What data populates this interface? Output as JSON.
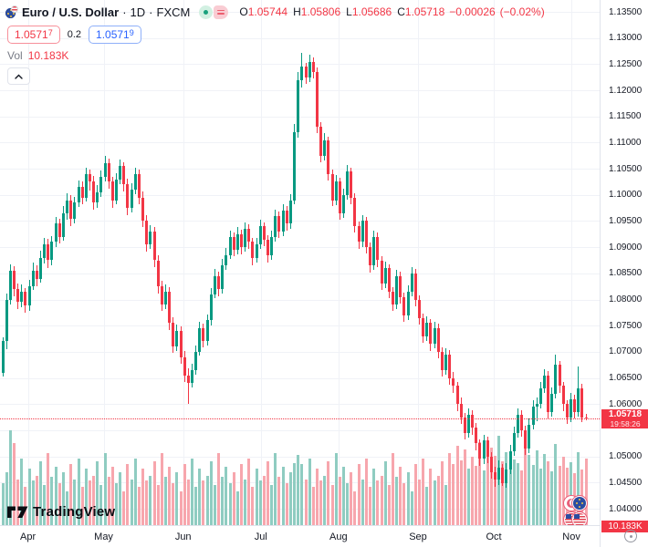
{
  "header": {
    "symbol_title": "Euro / U.S. Dollar",
    "separator": "·",
    "interval": "1D",
    "exchange": "FXCM",
    "ohlc": {
      "o_label": "O",
      "o": "1.05744",
      "h_label": "H",
      "h": "1.05806",
      "l_label": "L",
      "l": "1.05686",
      "c_label": "C",
      "c": "1.05718",
      "change": "−0.00026",
      "change_pct": "(−0.02%)"
    },
    "bid": {
      "main": "1.0571",
      "sup": "7"
    },
    "spread": "0.2",
    "ask": {
      "main": "1.0571",
      "sup": "9"
    },
    "vol_label": "Vol",
    "vol_value": "10.183K"
  },
  "last_price_label": {
    "price": "1.05718",
    "countdown": "19:58:26"
  },
  "volume_badge": "10.183K",
  "logo": {
    "text": "TradingView"
  },
  "colors": {
    "up": "#089981",
    "down": "#f23645",
    "vol_up": "#8fccc1",
    "vol_down": "#f7a6ad",
    "accent_blue": "#2962ff",
    "accent_red": "#f23645",
    "grid": "#f0f2f7",
    "axis_text": "#131722",
    "muted_text": "#787b86"
  },
  "price_axis_labels": [
    "1.13500",
    "1.13000",
    "1.12500",
    "1.12000",
    "1.11500",
    "1.11000",
    "1.10500",
    "1.10000",
    "1.09500",
    "1.09000",
    "1.08500",
    "1.08000",
    "1.07500",
    "1.07000",
    "1.06500",
    "1.06000",
    "1.05000",
    "1.04500",
    "1.04000"
  ],
  "chart_data": {
    "type": "candlestick",
    "title": "Euro / U.S. Dollar · 1D · FXCM",
    "symbol": "EUR/USD",
    "interval": "1D",
    "exchange": "FXCM",
    "last": {
      "open": 1.05744,
      "high": 1.05806,
      "low": 1.05686,
      "close": 1.05718,
      "change": -0.00026,
      "change_pct": -0.02,
      "volume_k": 10.183
    },
    "price_axis": {
      "min": 1.04,
      "max": 1.135,
      "step": 0.005
    },
    "x_axis_months": [
      {
        "label": "Apr",
        "index": 7
      },
      {
        "label": "May",
        "index": 27
      },
      {
        "label": "Jun",
        "index": 48
      },
      {
        "label": "Jul",
        "index": 68.5
      },
      {
        "label": "Aug",
        "index": 89
      },
      {
        "label": "Sep",
        "index": 110
      },
      {
        "label": "Oct",
        "index": 130
      },
      {
        "label": "Nov",
        "index": 150.5
      }
    ],
    "series_format": [
      "open",
      "high",
      "low",
      "close",
      "volume_k"
    ],
    "candles": [
      [
        1.066,
        1.0728,
        1.0652,
        1.072,
        6.4
      ],
      [
        1.072,
        1.0812,
        1.0705,
        1.08,
        8.1
      ],
      [
        1.08,
        1.0868,
        1.079,
        1.0855,
        14.5
      ],
      [
        1.0855,
        1.0864,
        1.0806,
        1.082,
        12.5
      ],
      [
        1.082,
        1.0831,
        1.0782,
        1.0795,
        7.0
      ],
      [
        1.0795,
        1.0828,
        1.0786,
        1.0815,
        10.2
      ],
      [
        1.0815,
        1.0822,
        1.0775,
        1.0788,
        5.8
      ],
      [
        1.0788,
        1.0838,
        1.0779,
        1.0825,
        8.6
      ],
      [
        1.0825,
        1.087,
        1.0818,
        1.0855,
        6.9
      ],
      [
        1.0855,
        1.0866,
        1.0826,
        1.084,
        7.6
      ],
      [
        1.084,
        1.0893,
        1.0832,
        1.088,
        9.8
      ],
      [
        1.088,
        1.0918,
        1.0869,
        1.0905,
        6.2
      ],
      [
        1.0905,
        1.0916,
        1.0861,
        1.0875,
        11.0
      ],
      [
        1.0875,
        1.0922,
        1.0865,
        1.091,
        7.4
      ],
      [
        1.091,
        1.0958,
        1.09,
        1.0945,
        8.9
      ],
      [
        1.0945,
        1.0955,
        1.0908,
        1.092,
        6.4
      ],
      [
        1.092,
        1.0978,
        1.0912,
        1.0965,
        8.1
      ],
      [
        1.0965,
        1.1003,
        1.0952,
        1.099,
        5.2
      ],
      [
        1.099,
        1.0999,
        1.0941,
        1.0955,
        9.3
      ],
      [
        1.0955,
        1.0996,
        1.0946,
        1.0985,
        7.0
      ],
      [
        1.0985,
        1.1028,
        1.0977,
        1.1015,
        10.2
      ],
      [
        1.1015,
        1.1026,
        1.0982,
        1.0995,
        5.8
      ],
      [
        1.0995,
        1.1052,
        1.0988,
        1.104,
        8.6
      ],
      [
        1.104,
        1.1049,
        1.1008,
        1.1025,
        6.9
      ],
      [
        1.1025,
        1.1036,
        1.0972,
        1.0985,
        7.6
      ],
      [
        1.0985,
        1.1018,
        1.0976,
        1.1005,
        9.8
      ],
      [
        1.1005,
        1.1046,
        1.0997,
        1.1035,
        6.2
      ],
      [
        1.1035,
        1.1075,
        1.1026,
        1.106,
        11.0
      ],
      [
        1.106,
        1.1069,
        1.1012,
        1.1025,
        7.4
      ],
      [
        1.1025,
        1.1034,
        1.0976,
        1.099,
        8.9
      ],
      [
        1.099,
        1.1042,
        1.0982,
        1.103,
        6.4
      ],
      [
        1.103,
        1.1068,
        1.1021,
        1.1055,
        8.1
      ],
      [
        1.1055,
        1.1063,
        1.1006,
        1.102,
        5.2
      ],
      [
        1.102,
        1.1031,
        1.0962,
        1.0975,
        9.3
      ],
      [
        1.0975,
        1.1022,
        1.0966,
        1.101,
        7.0
      ],
      [
        1.101,
        1.1052,
        1.1001,
        1.104,
        10.2
      ],
      [
        1.104,
        1.1048,
        1.0982,
        1.0995,
        5.8
      ],
      [
        1.0995,
        1.1006,
        1.0938,
        1.095,
        8.6
      ],
      [
        1.095,
        1.0961,
        1.0892,
        1.0905,
        6.9
      ],
      [
        1.0905,
        1.0942,
        1.0896,
        1.093,
        7.6
      ],
      [
        1.093,
        1.0938,
        1.0862,
        1.0875,
        9.8
      ],
      [
        1.0875,
        1.0884,
        1.0812,
        1.0825,
        6.2
      ],
      [
        1.0825,
        1.0836,
        1.0778,
        1.079,
        11.0
      ],
      [
        1.079,
        1.0828,
        1.0781,
        1.0815,
        7.4
      ],
      [
        1.0815,
        1.0823,
        1.0742,
        1.0755,
        8.9
      ],
      [
        1.0755,
        1.0766,
        1.0698,
        1.071,
        6.4
      ],
      [
        1.071,
        1.0752,
        1.0701,
        1.074,
        8.1
      ],
      [
        1.074,
        1.0749,
        1.0678,
        1.069,
        5.2
      ],
      [
        1.069,
        1.0701,
        1.0642,
        1.0655,
        9.3
      ],
      [
        1.0655,
        1.0668,
        1.0601,
        1.064,
        7.0
      ],
      [
        1.064,
        1.0678,
        1.0632,
        1.0665,
        10.2
      ],
      [
        1.0665,
        1.0712,
        1.0656,
        1.07,
        5.8
      ],
      [
        1.07,
        1.0758,
        1.0692,
        1.0745,
        8.6
      ],
      [
        1.0745,
        1.0754,
        1.0708,
        1.072,
        6.9
      ],
      [
        1.072,
        1.0772,
        1.0712,
        1.076,
        7.6
      ],
      [
        1.076,
        1.0822,
        1.0751,
        1.081,
        9.8
      ],
      [
        1.081,
        1.0858,
        1.0802,
        1.0845,
        6.2
      ],
      [
        1.0845,
        1.0853,
        1.0806,
        1.082,
        11.0
      ],
      [
        1.082,
        1.0878,
        1.0812,
        1.0865,
        7.4
      ],
      [
        1.0865,
        1.0898,
        1.0856,
        1.0885,
        8.9
      ],
      [
        1.0885,
        1.0932,
        1.0877,
        1.092,
        6.4
      ],
      [
        1.092,
        1.0928,
        1.0882,
        1.0895,
        8.1
      ],
      [
        1.0895,
        1.0938,
        1.0886,
        1.0925,
        5.2
      ],
      [
        1.0925,
        1.0933,
        1.0887,
        1.09,
        9.3
      ],
      [
        1.09,
        1.0948,
        1.0892,
        1.0935,
        7.0
      ],
      [
        1.0935,
        1.0943,
        1.0897,
        1.091,
        10.2
      ],
      [
        1.091,
        1.0918,
        1.0866,
        1.088,
        5.8
      ],
      [
        1.088,
        1.0918,
        1.0871,
        1.0905,
        8.6
      ],
      [
        1.0905,
        1.0953,
        1.0897,
        1.094,
        6.9
      ],
      [
        1.094,
        1.0948,
        1.0902,
        1.0915,
        7.6
      ],
      [
        1.0915,
        1.0923,
        1.0871,
        1.0885,
        9.8
      ],
      [
        1.0885,
        1.0932,
        1.0876,
        1.092,
        6.2
      ],
      [
        1.092,
        1.0972,
        1.0911,
        1.096,
        11.0
      ],
      [
        1.096,
        1.0968,
        1.0917,
        1.093,
        7.4
      ],
      [
        1.093,
        1.0982,
        1.0922,
        1.097,
        8.9
      ],
      [
        1.097,
        1.0978,
        1.0932,
        1.0945,
        6.4
      ],
      [
        1.0945,
        1.1002,
        1.0936,
        1.099,
        8.1
      ],
      [
        1.099,
        1.1135,
        1.0982,
        1.112,
        9.5
      ],
      [
        1.112,
        1.1235,
        1.111,
        1.122,
        10.8
      ],
      [
        1.122,
        1.1272,
        1.1205,
        1.1245,
        9.3
      ],
      [
        1.1245,
        1.1253,
        1.1212,
        1.1225,
        7.0
      ],
      [
        1.1225,
        1.1268,
        1.1216,
        1.1255,
        10.2
      ],
      [
        1.1255,
        1.1262,
        1.1222,
        1.1235,
        5.8
      ],
      [
        1.1235,
        1.1243,
        1.1118,
        1.113,
        8.6
      ],
      [
        1.113,
        1.1139,
        1.1062,
        1.1075,
        6.9
      ],
      [
        1.1075,
        1.1118,
        1.1066,
        1.1105,
        7.6
      ],
      [
        1.1105,
        1.1112,
        1.1028,
        1.104,
        9.8
      ],
      [
        1.104,
        1.1049,
        1.0978,
        1.099,
        6.2
      ],
      [
        1.099,
        1.1038,
        1.0981,
        1.1025,
        11.0
      ],
      [
        1.1025,
        1.1032,
        1.0952,
        1.0965,
        7.4
      ],
      [
        1.0965,
        1.1012,
        1.0956,
        1.1,
        8.9
      ],
      [
        1.1,
        1.1058,
        1.0991,
        1.1045,
        6.4
      ],
      [
        1.1045,
        1.1052,
        1.0982,
        1.0995,
        8.1
      ],
      [
        1.0995,
        1.1003,
        1.0928,
        1.094,
        5.2
      ],
      [
        1.094,
        1.0949,
        1.0896,
        1.091,
        9.3
      ],
      [
        1.091,
        1.0962,
        1.0901,
        1.095,
        7.0
      ],
      [
        1.095,
        1.0958,
        1.0888,
        1.09,
        10.2
      ],
      [
        1.09,
        1.0909,
        1.0851,
        1.0865,
        5.8
      ],
      [
        1.0865,
        1.0932,
        1.0856,
        1.092,
        8.6
      ],
      [
        1.092,
        1.0928,
        1.0862,
        1.0875,
        6.9
      ],
      [
        1.0875,
        1.0883,
        1.0818,
        1.083,
        7.6
      ],
      [
        1.083,
        1.0872,
        1.0821,
        1.086,
        9.8
      ],
      [
        1.086,
        1.0868,
        1.0802,
        1.0815,
        6.2
      ],
      [
        1.0815,
        1.0824,
        1.0778,
        1.079,
        11.0
      ],
      [
        1.079,
        1.0857,
        1.0781,
        1.0845,
        7.4
      ],
      [
        1.0845,
        1.0853,
        1.0792,
        1.0805,
        8.9
      ],
      [
        1.0805,
        1.0813,
        1.0757,
        1.077,
        6.4
      ],
      [
        1.077,
        1.0827,
        1.0761,
        1.0815,
        8.1
      ],
      [
        1.0815,
        1.0862,
        1.0806,
        1.085,
        5.2
      ],
      [
        1.085,
        1.0858,
        1.0787,
        1.08,
        9.3
      ],
      [
        1.08,
        1.0808,
        1.0752,
        1.0765,
        7.0
      ],
      [
        1.0765,
        1.0773,
        1.0717,
        1.073,
        10.2
      ],
      [
        1.073,
        1.0767,
        1.0721,
        1.0755,
        5.8
      ],
      [
        1.0755,
        1.0763,
        1.0702,
        1.0715,
        8.6
      ],
      [
        1.0715,
        1.0757,
        1.0706,
        1.0745,
        6.9
      ],
      [
        1.0745,
        1.0753,
        1.0687,
        1.07,
        7.6
      ],
      [
        1.07,
        1.0708,
        1.0652,
        1.0665,
        9.8
      ],
      [
        1.0665,
        1.0707,
        1.0656,
        1.0695,
        6.2
      ],
      [
        1.0695,
        1.0703,
        1.0637,
        1.065,
        11.0
      ],
      [
        1.065,
        1.0662,
        1.0622,
        1.0635,
        9.4
      ],
      [
        1.0635,
        1.0643,
        1.0587,
        1.06,
        12.2
      ],
      [
        1.06,
        1.0612,
        1.0562,
        1.0575,
        9.9
      ],
      [
        1.0575,
        1.0583,
        1.0532,
        1.0545,
        11.6
      ],
      [
        1.0545,
        1.0592,
        1.0536,
        1.058,
        8.7
      ],
      [
        1.058,
        1.0588,
        1.0542,
        1.0555,
        10.4
      ],
      [
        1.0555,
        1.0563,
        1.0512,
        1.0525,
        9.1
      ],
      [
        1.0525,
        1.0533,
        1.0482,
        1.0495,
        12.7
      ],
      [
        1.0495,
        1.0542,
        1.0486,
        1.053,
        8.3
      ],
      [
        1.053,
        1.0538,
        1.0487,
        1.05,
        10.9
      ],
      [
        1.05,
        1.0508,
        1.0457,
        1.047,
        11.8
      ],
      [
        1.047,
        1.0481,
        1.0442,
        1.0455,
        10.6
      ],
      [
        1.0455,
        1.0492,
        1.0446,
        1.0478,
        13.6
      ],
      [
        1.0478,
        1.0486,
        1.0444,
        1.0448,
        9.7
      ],
      [
        1.0448,
        1.0487,
        1.044,
        1.0475,
        11.2
      ],
      [
        1.0475,
        1.0522,
        1.0466,
        1.051,
        8.8
      ],
      [
        1.051,
        1.0557,
        1.0501,
        1.0545,
        10.1
      ],
      [
        1.0545,
        1.0592,
        1.0536,
        1.058,
        9.5
      ],
      [
        1.058,
        1.0588,
        1.0537,
        1.055,
        8.4
      ],
      [
        1.055,
        1.0558,
        1.0502,
        1.0515,
        12.8
      ],
      [
        1.0515,
        1.0572,
        1.0506,
        1.056,
        10.7
      ],
      [
        1.056,
        1.0607,
        1.0551,
        1.0595,
        9.2
      ],
      [
        1.0595,
        1.0613,
        1.0567,
        1.06,
        11.4
      ],
      [
        1.06,
        1.0642,
        1.0591,
        1.063,
        8.6
      ],
      [
        1.063,
        1.0667,
        1.0621,
        1.0655,
        10.9
      ],
      [
        1.0655,
        1.0663,
        1.0572,
        1.0585,
        9.8
      ],
      [
        1.0585,
        1.0632,
        1.0576,
        1.062,
        8.2
      ],
      [
        1.062,
        1.0695,
        1.0611,
        1.0675,
        12.4
      ],
      [
        1.0675,
        1.0683,
        1.0622,
        1.0635,
        9.0
      ],
      [
        1.0635,
        1.0643,
        1.0587,
        1.06,
        10.5
      ],
      [
        1.06,
        1.0608,
        1.0562,
        1.0575,
        8.8
      ],
      [
        1.0575,
        1.0622,
        1.0566,
        1.061,
        9.6
      ],
      [
        1.061,
        1.0618,
        1.0572,
        1.0585,
        7.9
      ],
      [
        1.0585,
        1.0672,
        1.0576,
        1.063,
        11.1
      ],
      [
        1.063,
        1.0638,
        1.0565,
        1.0574,
        8.5
      ],
      [
        1.05744,
        1.05806,
        1.05686,
        1.05718,
        10.183
      ]
    ]
  }
}
